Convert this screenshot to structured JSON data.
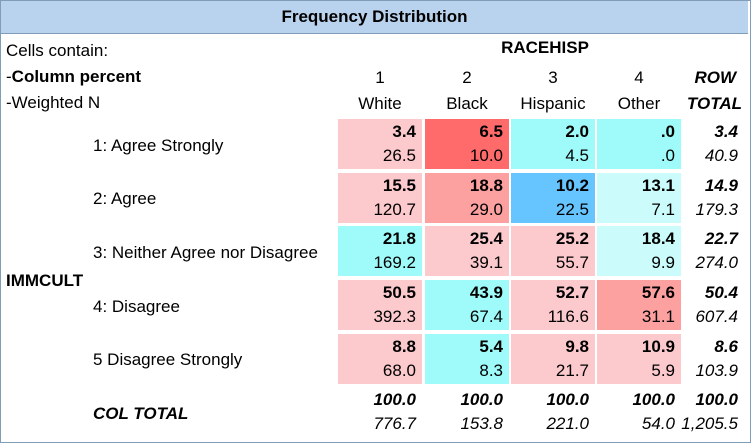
{
  "title": "Frequency Distribution",
  "legend": {
    "line1": "Cells contain:",
    "line2": "Column percent",
    "line3": "Weighted N",
    "dash2": "-",
    "dash3": "-"
  },
  "col_var": "RACEHISP",
  "row_var": "IMMCULT",
  "columns": [
    {
      "code": "1",
      "label": "White"
    },
    {
      "code": "2",
      "label": "Black"
    },
    {
      "code": "3",
      "label": "Hispanic"
    },
    {
      "code": "4",
      "label": "Other"
    }
  ],
  "row_total_header": {
    "line1": "ROW",
    "line2": "TOTAL"
  },
  "rows": [
    {
      "label": "1: Agree Strongly",
      "cells": [
        {
          "pct": "3.4",
          "n": "26.5"
        },
        {
          "pct": "6.5",
          "n": "10.0"
        },
        {
          "pct": "2.0",
          "n": "4.5"
        },
        {
          "pct": ".0",
          "n": ".0"
        }
      ],
      "total": {
        "pct": "3.4",
        "n": "40.9"
      }
    },
    {
      "label": "2: Agree",
      "cells": [
        {
          "pct": "15.5",
          "n": "120.7"
        },
        {
          "pct": "18.8",
          "n": "29.0"
        },
        {
          "pct": "10.2",
          "n": "22.5"
        },
        {
          "pct": "13.1",
          "n": "7.1"
        }
      ],
      "total": {
        "pct": "14.9",
        "n": "179.3"
      }
    },
    {
      "label": "3: Neither Agree nor Disagree",
      "cells": [
        {
          "pct": "21.8",
          "n": "169.2"
        },
        {
          "pct": "25.4",
          "n": "39.1"
        },
        {
          "pct": "25.2",
          "n": "55.7"
        },
        {
          "pct": "18.4",
          "n": "9.9"
        }
      ],
      "total": {
        "pct": "22.7",
        "n": "274.0"
      }
    },
    {
      "label": "4: Disagree",
      "cells": [
        {
          "pct": "50.5",
          "n": "392.3"
        },
        {
          "pct": "43.9",
          "n": "67.4"
        },
        {
          "pct": "52.7",
          "n": "116.6"
        },
        {
          "pct": "57.6",
          "n": "31.1"
        }
      ],
      "total": {
        "pct": "50.4",
        "n": "607.4"
      }
    },
    {
      "label": "5 Disagree Strongly",
      "cells": [
        {
          "pct": "8.8",
          "n": "68.0"
        },
        {
          "pct": "5.4",
          "n": "8.3"
        },
        {
          "pct": "9.8",
          "n": "21.7"
        },
        {
          "pct": "10.9",
          "n": "5.9"
        }
      ],
      "total": {
        "pct": "8.6",
        "n": "103.9"
      }
    }
  ],
  "col_total": {
    "label": "COL TOTAL",
    "cells": [
      {
        "pct": "100.0",
        "n": "776.7"
      },
      {
        "pct": "100.0",
        "n": "153.8"
      },
      {
        "pct": "100.0",
        "n": "221.0"
      },
      {
        "pct": "100.0",
        "n": "54.0"
      }
    ],
    "total": {
      "pct": "100.0",
      "n": "1,205.5"
    }
  },
  "cell_colors": [
    [
      "#fcc9cd",
      "#ff6b6b",
      "#9ffafa",
      "#9ffafa"
    ],
    [
      "#fcc9cd",
      "#fca0a0",
      "#66c5ff",
      "#cbfbfb"
    ],
    [
      "#9ffafa",
      "#fcc9cd",
      "#fcc9cd",
      "#cbfbfb"
    ],
    [
      "#fcc9cd",
      "#9ffafa",
      "#fcc9cd",
      "#fca0a0"
    ],
    [
      "#fcc9cd",
      "#9ffafa",
      "#fcc9cd",
      "#fcc9cd"
    ]
  ]
}
